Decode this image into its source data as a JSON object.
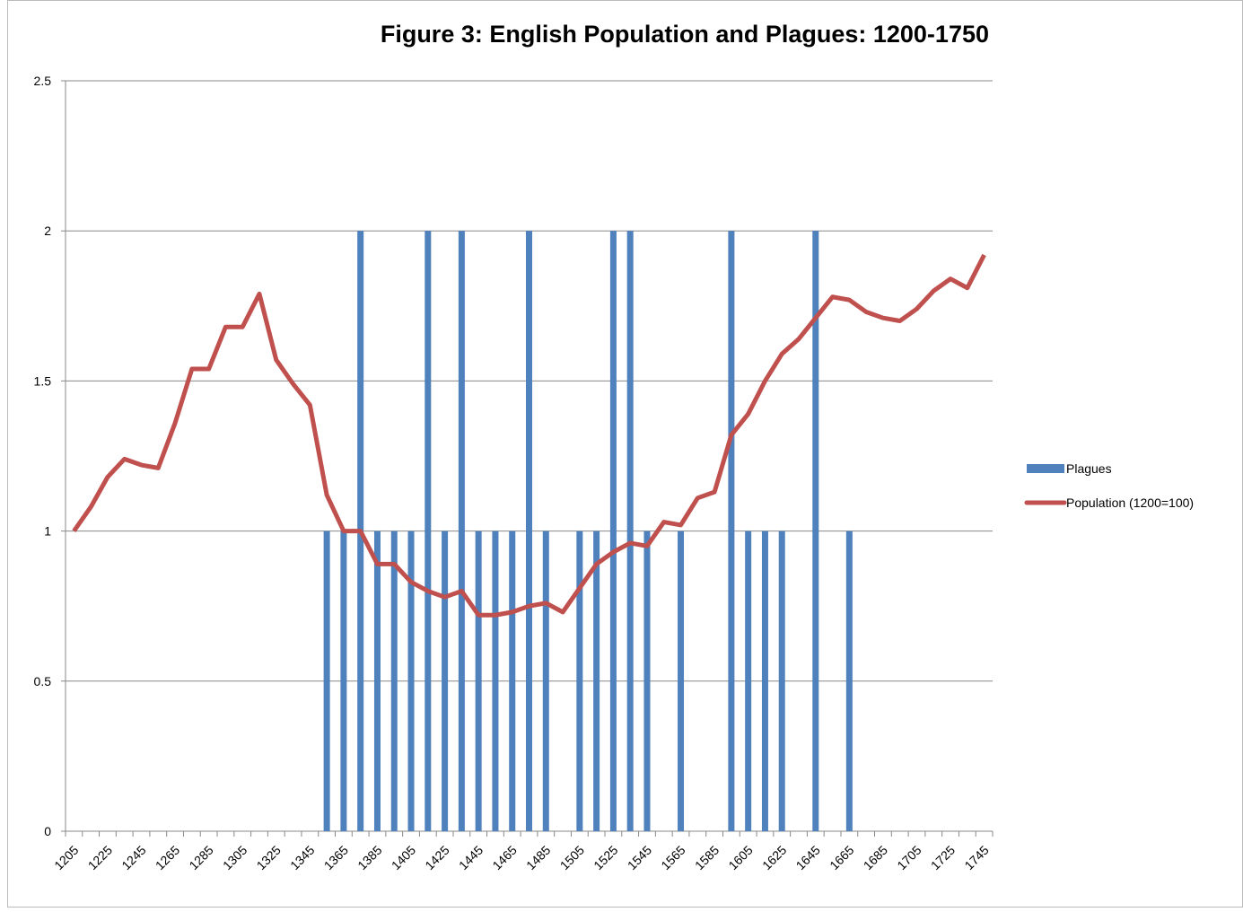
{
  "chart_data": {
    "type": "bar-line",
    "title": "Figure 3:  English Population and Plagues: 1200-1750",
    "categories": [
      "1205",
      null,
      "1225",
      null,
      "1245",
      null,
      "1265",
      null,
      "1285",
      null,
      "1305",
      null,
      "1325",
      null,
      "1345",
      null,
      "1365",
      null,
      "1385",
      null,
      "1405",
      null,
      "1425",
      null,
      "1445",
      null,
      "1465",
      null,
      "1485",
      null,
      "1505",
      null,
      "1525",
      null,
      "1545",
      null,
      "1565",
      null,
      "1585",
      null,
      "1605",
      null,
      "1625",
      null,
      "1645",
      null,
      "1665",
      null,
      "1685",
      null,
      "1705",
      null,
      "1725",
      null,
      "1745"
    ],
    "series": [
      {
        "name": "Plagues",
        "type": "bar",
        "color": "#4f81bd",
        "values": [
          0,
          0,
          0,
          0,
          0,
          0,
          0,
          0,
          0,
          0,
          0,
          0,
          0,
          0,
          0,
          1,
          1,
          2,
          1,
          1,
          1,
          2,
          1,
          2,
          1,
          1,
          1,
          2,
          1,
          0,
          1,
          1,
          2,
          2,
          1,
          0,
          1,
          0,
          0,
          2,
          1,
          1,
          1,
          0,
          2,
          0,
          1,
          0,
          0,
          0,
          0,
          0,
          0,
          0,
          0
        ]
      },
      {
        "name": "Population (1200=100)",
        "type": "line",
        "color": "#c0504d",
        "values": [
          1.0,
          1.08,
          1.18,
          1.24,
          1.22,
          1.21,
          1.36,
          1.54,
          1.54,
          1.68,
          1.68,
          1.79,
          1.57,
          1.49,
          1.42,
          1.12,
          1.0,
          1.0,
          0.89,
          0.89,
          0.83,
          0.8,
          0.78,
          0.8,
          0.72,
          0.72,
          0.73,
          0.75,
          0.76,
          0.73,
          0.81,
          0.89,
          0.93,
          0.96,
          0.95,
          1.03,
          1.02,
          1.11,
          1.13,
          1.32,
          1.39,
          1.5,
          1.59,
          1.64,
          1.71,
          1.78,
          1.77,
          1.73,
          1.71,
          1.7,
          1.74,
          1.8,
          1.84,
          1.81,
          1.92
        ]
      }
    ],
    "ylim": [
      0,
      2.5
    ],
    "yticks": [
      0,
      0.5,
      1,
      1.5,
      2,
      2.5
    ],
    "grid": true,
    "legend": "right"
  }
}
